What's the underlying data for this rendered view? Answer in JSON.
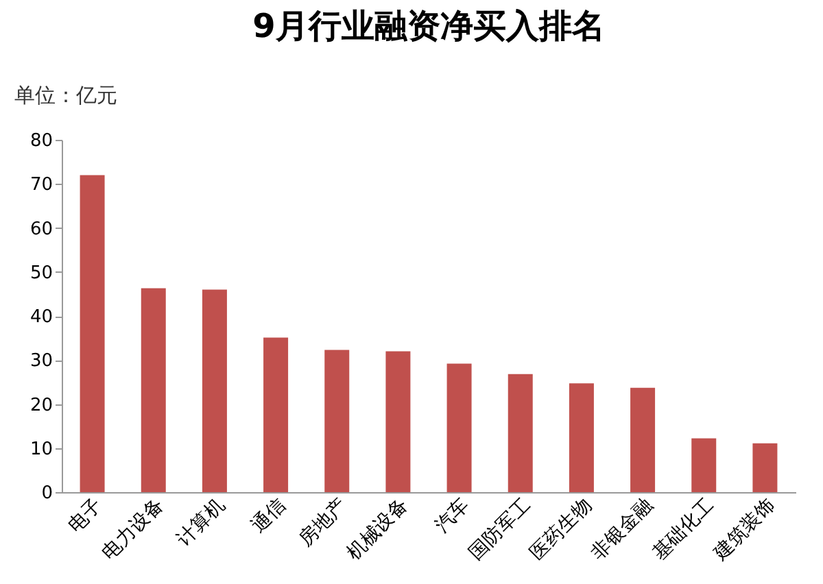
{
  "chart_data": {
    "type": "bar",
    "title": "9月行业融资净买入排名",
    "ylabel": "单位：亿元",
    "categories": [
      "电子",
      "电力设备",
      "计算机",
      "通信",
      "房地产",
      "机械设备",
      "汽车",
      "国防军工",
      "医药生物",
      "非银金融",
      "基础化工",
      "建筑装饰"
    ],
    "values": [
      72.0,
      46.3,
      46.0,
      35.1,
      32.3,
      32.0,
      29.2,
      26.8,
      24.7,
      23.7,
      12.2,
      11.1
    ],
    "color": "#c0504d",
    "ylim": [
      0,
      80
    ],
    "yticks": [
      0,
      10,
      20,
      30,
      40,
      50,
      60,
      70,
      80
    ],
    "grid": false
  }
}
